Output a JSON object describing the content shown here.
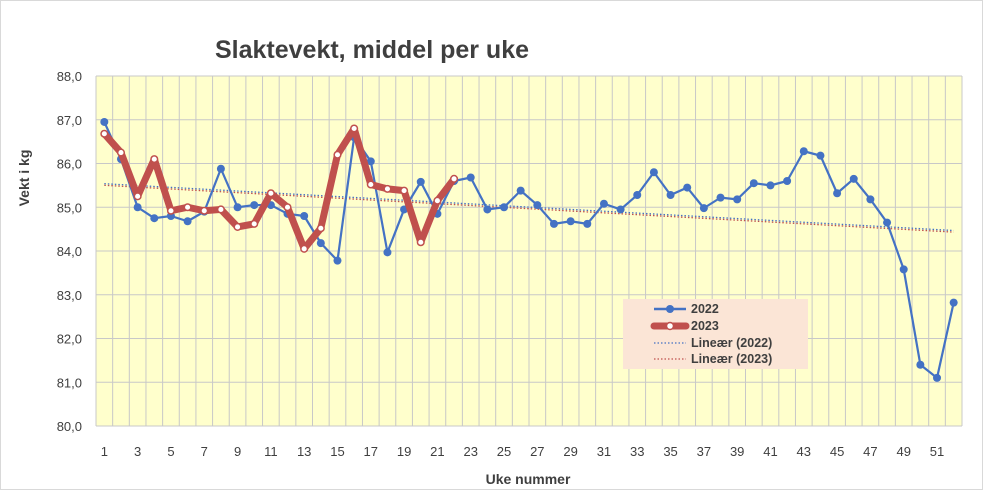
{
  "chart_data": {
    "type": "line",
    "title": "Slaktevekt, middel per uke",
    "xlabel": "Uke nummer",
    "ylabel": "Vekt i kg",
    "ylim": [
      80,
      88
    ],
    "yticks": [
      "80,0",
      "81,0",
      "82,0",
      "83,0",
      "84,0",
      "85,0",
      "86,0",
      "87,0",
      "88,0"
    ],
    "xticks": [
      "1",
      "3",
      "5",
      "7",
      "9",
      "11",
      "13",
      "15",
      "17",
      "19",
      "21",
      "23",
      "25",
      "27",
      "29",
      "31",
      "33",
      "35",
      "37",
      "39",
      "41",
      "43",
      "45",
      "47",
      "49",
      "51"
    ],
    "x_count": 52,
    "grid": true,
    "plot_background": "#ffffcc",
    "series": [
      {
        "name": "2022",
        "color": "#4472c4",
        "values": [
          86.95,
          86.1,
          85.0,
          84.75,
          84.8,
          84.68,
          84.9,
          85.88,
          85.0,
          85.05,
          85.05,
          84.85,
          84.8,
          84.18,
          83.78,
          86.6,
          86.05,
          83.97,
          84.95,
          85.58,
          84.85,
          85.6,
          85.68,
          84.95,
          85.0,
          85.38,
          85.05,
          84.62,
          84.68,
          84.62,
          85.08,
          84.95,
          85.28,
          85.8,
          85.28,
          85.45,
          84.98,
          85.22,
          85.18,
          85.55,
          85.5,
          85.6,
          86.28,
          86.18,
          85.32,
          85.65,
          85.18,
          84.65,
          83.58,
          81.4,
          81.1,
          82.82
        ]
      },
      {
        "name": "2023",
        "color": "#c0504d",
        "values": [
          86.68,
          86.25,
          85.25,
          86.1,
          84.92,
          85.0,
          84.92,
          84.95,
          84.55,
          84.62,
          85.32,
          85.0,
          84.05,
          84.52,
          86.2,
          86.8,
          85.52,
          85.42,
          85.38,
          84.2,
          85.15,
          85.65
        ]
      }
    ],
    "trendlines": [
      {
        "name": "Lineær (2022)",
        "color": "#4472c4",
        "start": 85.52,
        "end": 84.45
      },
      {
        "name": "Lineær (2023)",
        "color": "#c0504d",
        "start": 85.52,
        "end": 84.45
      }
    ],
    "legend": {
      "position": "bottom-right-inside",
      "background": "#fbe5d6",
      "entries": [
        "2022",
        "2023",
        "Lineær (2022)",
        "Lineær (2023)"
      ]
    }
  }
}
